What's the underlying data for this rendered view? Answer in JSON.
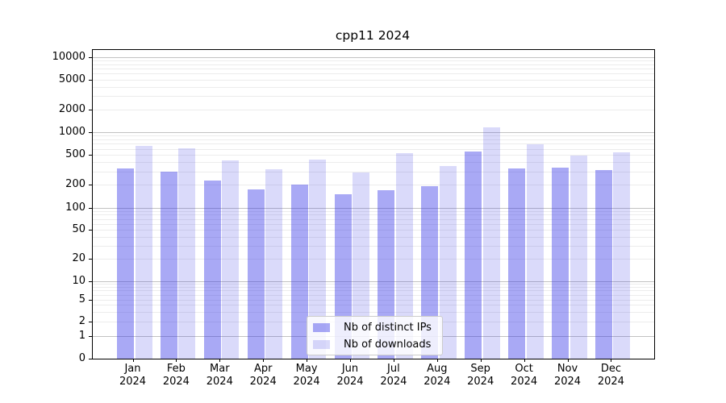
{
  "chart_data": {
    "type": "bar",
    "title": "cpp11 2024",
    "yscale": "symlog",
    "ylim": [
      0,
      13000
    ],
    "grid": true,
    "legend_position": "lower center inside plot",
    "y_ticks": [
      10000,
      5000,
      2000,
      1000,
      500,
      200,
      100,
      50,
      20,
      10,
      5,
      2,
      1,
      0
    ],
    "categories": [
      "Jan\n2024",
      "Feb\n2024",
      "Mar\n2024",
      "Apr\n2024",
      "May\n2024",
      "Jun\n2024",
      "Jul\n2024",
      "Aug\n2024",
      "Sep\n2024",
      "Oct\n2024",
      "Nov\n2024",
      "Dec\n2024"
    ],
    "series": [
      {
        "name": "Nb of distinct IPs",
        "color": "rgba(50,50,230,0.42)",
        "color_hex_on_white": "#a9a9f4",
        "values": [
          330,
          300,
          225,
          175,
          200,
          150,
          170,
          192,
          550,
          330,
          335,
          315
        ]
      },
      {
        "name": "Nb of downloads",
        "color": "rgba(50,50,230,0.18)",
        "color_hex_on_white": "#d9d9f9",
        "values": [
          660,
          610,
          420,
          320,
          435,
          290,
          520,
          350,
          1150,
          690,
          490,
          535
        ]
      }
    ],
    "grid_major_color": "#c2c2c2",
    "grid_minor_color": "#ececec"
  }
}
